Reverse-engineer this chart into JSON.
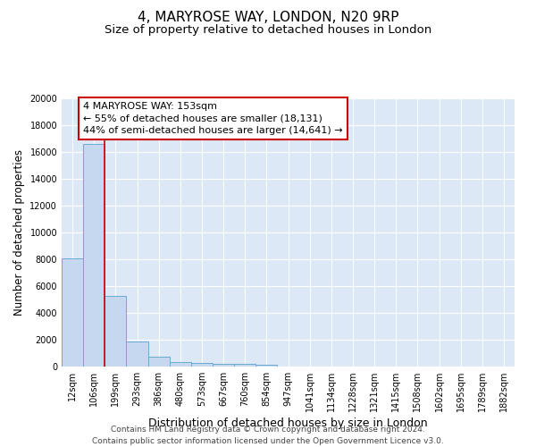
{
  "title": "4, MARYROSE WAY, LONDON, N20 9RP",
  "subtitle": "Size of property relative to detached houses in London",
  "xlabel": "Distribution of detached houses by size in London",
  "ylabel": "Number of detached properties",
  "categories": [
    "12sqm",
    "106sqm",
    "199sqm",
    "293sqm",
    "386sqm",
    "480sqm",
    "573sqm",
    "667sqm",
    "760sqm",
    "854sqm",
    "947sqm",
    "1041sqm",
    "1134sqm",
    "1228sqm",
    "1321sqm",
    "1415sqm",
    "1508sqm",
    "1602sqm",
    "1695sqm",
    "1789sqm",
    "1882sqm"
  ],
  "values": [
    8100,
    16600,
    5300,
    1850,
    750,
    310,
    240,
    200,
    170,
    150,
    0,
    0,
    0,
    0,
    0,
    0,
    0,
    0,
    0,
    0,
    0
  ],
  "bar_color": "#c5d8f0",
  "bar_edge_color": "#6aaad4",
  "bg_color": "#dce8f5",
  "vline_x": 1.5,
  "vline_color": "#cc0000",
  "annotation_text": "4 MARYROSE WAY: 153sqm\n← 55% of detached houses are smaller (18,131)\n44% of semi-detached houses are larger (14,641) →",
  "annotation_box_color": "#ffffff",
  "annotation_box_edge": "#cc0000",
  "ylim": [
    0,
    20000
  ],
  "yticks": [
    0,
    2000,
    4000,
    6000,
    8000,
    10000,
    12000,
    14000,
    16000,
    18000,
    20000
  ],
  "footer": "Contains HM Land Registry data © Crown copyright and database right 2024.\nContains public sector information licensed under the Open Government Licence v3.0.",
  "title_fontsize": 11,
  "subtitle_fontsize": 9.5,
  "xlabel_fontsize": 9,
  "ylabel_fontsize": 8.5,
  "tick_fontsize": 7,
  "footer_fontsize": 6.5,
  "annotation_fontsize": 8
}
